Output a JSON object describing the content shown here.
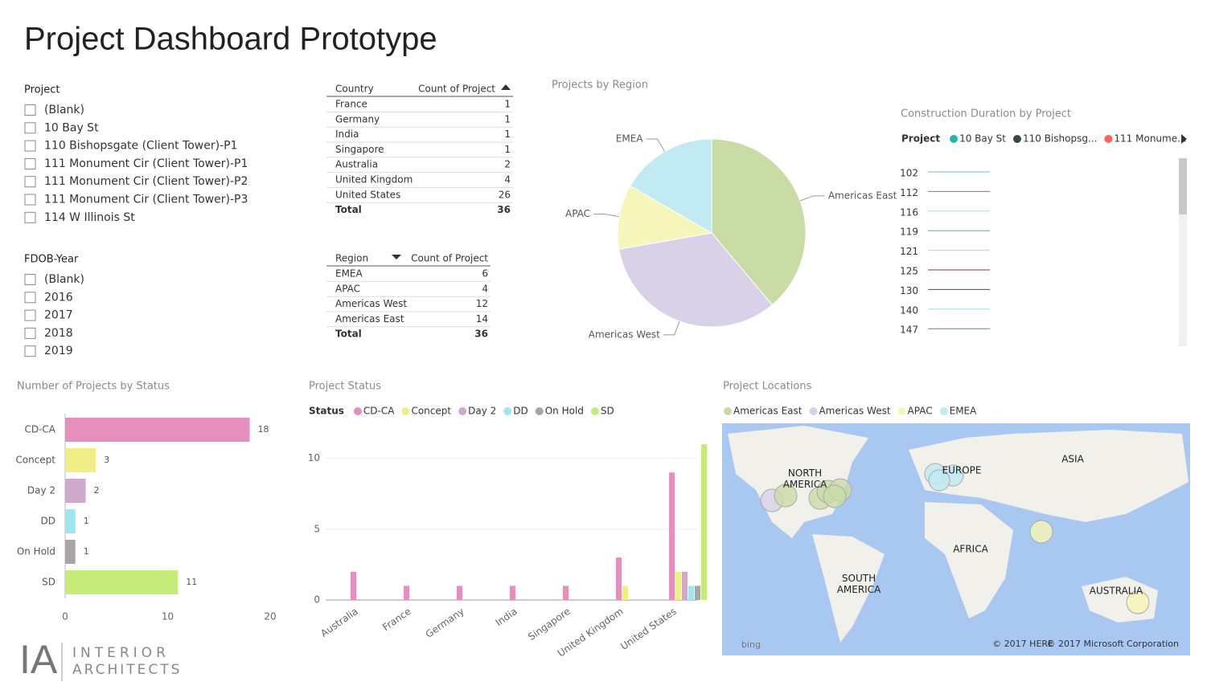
{
  "header": {
    "title": "Project Dashboard Prototype"
  },
  "slicers": [
    {
      "title": "Project",
      "items": [
        "(Blank)",
        "10 Bay St",
        "110 Bishopsgate (Client Tower)-P1",
        "111 Monument Cir (Client Tower)-P1",
        "111 Monument Cir (Client Tower)-P2",
        "111 Monument Cir (Client Tower)-P3",
        "114 W Illinois St"
      ]
    },
    {
      "title": "FDOB-Year",
      "items": [
        "(Blank)",
        "2016",
        "2017",
        "2018",
        "2019"
      ]
    }
  ],
  "tables": [
    {
      "columns": [
        "Country",
        "Count of Project"
      ],
      "rows": [
        [
          "France",
          1
        ],
        [
          "Germany",
          1
        ],
        [
          "India",
          1
        ],
        [
          "Singapore",
          1
        ],
        [
          "Australia",
          2
        ],
        [
          "United Kingdom",
          4
        ],
        [
          "United States",
          26
        ]
      ],
      "total": [
        "Total",
        36
      ]
    },
    {
      "columns": [
        "Region",
        "Count of Project"
      ],
      "rows": [
        [
          "EMEA",
          6
        ],
        [
          "APAC",
          4
        ],
        [
          "Americas West",
          12
        ],
        [
          "Americas East",
          14
        ]
      ],
      "total": [
        "Total",
        36
      ]
    }
  ],
  "chart_data": [
    {
      "type": "pie",
      "title": "Projects by Region",
      "categories": [
        "Americas East",
        "Americas West",
        "APAC",
        "EMEA"
      ],
      "values": [
        14,
        12,
        4,
        6
      ],
      "colors": [
        "#c9dca6",
        "#d8d1e7",
        "#f6f6bb",
        "#c1eaf3"
      ]
    },
    {
      "type": "duration",
      "title": "Construction Duration by Project",
      "legend_title": "Project",
      "series": [
        {
          "name": "10 Bay St",
          "color": "#1fb5ad"
        },
        {
          "name": "110 Bishopsg...",
          "color": "#374649"
        },
        {
          "name": "111 Monume...",
          "color": "#fd625e"
        }
      ],
      "categories": [
        "102",
        "112",
        "116",
        "119",
        "121",
        "125",
        "130",
        "140",
        "147"
      ],
      "line_colors": [
        "#5fc8c0",
        "#7a7f82",
        "#a9e3de",
        "#3cb8b0",
        "#c8cccd",
        "#8b3a3a",
        "#3f4e55",
        "#a9d8ee",
        "#6d7d86"
      ]
    },
    {
      "type": "hbar",
      "title": "Number of Projects by Status",
      "categories": [
        "CD-CA",
        "Concept",
        "Day 2",
        "DD",
        "On Hold",
        "SD"
      ],
      "values": [
        18,
        3,
        2,
        1,
        1,
        11
      ],
      "colors": [
        "#e78fbc",
        "#f0ef86",
        "#cfa8cc",
        "#9fe6ef",
        "#a9a5a5",
        "#c5ec7a"
      ],
      "xlim": [
        0,
        20
      ],
      "xticks": [
        0,
        10,
        20
      ]
    },
    {
      "type": "grouped_bar",
      "title": "Project Status",
      "legend_title": "Status",
      "categories": [
        "Australia",
        "France",
        "Germany",
        "India",
        "Singapore",
        "United Kingdom",
        "United States"
      ],
      "series": [
        {
          "name": "CD-CA",
          "color": "#e78fbc",
          "values": [
            2,
            1,
            1,
            1,
            1,
            3,
            9
          ]
        },
        {
          "name": "Concept",
          "color": "#f0ef86",
          "values": [
            0,
            0,
            0,
            0,
            0,
            1,
            2
          ]
        },
        {
          "name": "Day 2",
          "color": "#cfa8cc",
          "values": [
            0,
            0,
            0,
            0,
            0,
            0,
            2
          ]
        },
        {
          "name": "DD",
          "color": "#9fe6ef",
          "values": [
            0,
            0,
            0,
            0,
            0,
            0,
            1
          ]
        },
        {
          "name": "On Hold",
          "color": "#a9a5a5",
          "values": [
            0,
            0,
            0,
            0,
            0,
            0,
            1
          ]
        },
        {
          "name": "SD",
          "color": "#c5ec7a",
          "values": [
            0,
            0,
            0,
            0,
            0,
            0,
            11
          ]
        }
      ],
      "ylim": [
        0,
        11
      ],
      "yticks": [
        0,
        5,
        10
      ],
      "grid": true
    }
  ],
  "map": {
    "title": "Project Locations",
    "legend": [
      {
        "name": "Americas East",
        "color": "#c9dca6"
      },
      {
        "name": "Americas West",
        "color": "#d8d1e7"
      },
      {
        "name": "APAC",
        "color": "#f6f6bb"
      },
      {
        "name": "EMEA",
        "color": "#c1eaf3"
      }
    ],
    "labels": [
      "NORTH AMERICA",
      "EUROPE",
      "ASIA",
      "AFRICA",
      "SOUTH AMERICA",
      "AUSTRALIA"
    ],
    "provider": "bing",
    "credits": [
      "© 2017 HERE",
      "© 2017 Microsoft Corporation"
    ]
  },
  "logo": {
    "mark": "IA",
    "lines": [
      "INTERIOR",
      "ARCHITECTS"
    ]
  }
}
